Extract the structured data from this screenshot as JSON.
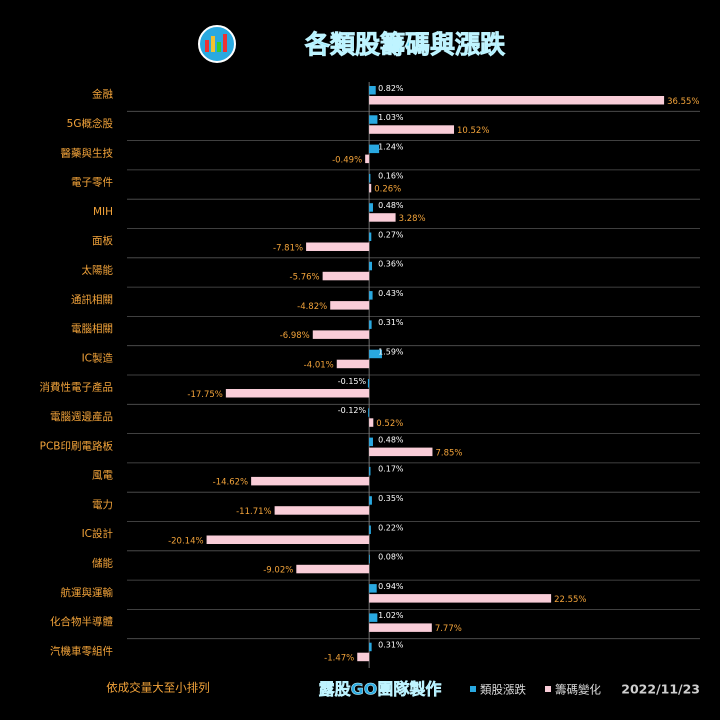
{
  "chart_data": {
    "type": "bar",
    "orientation": "horizontal",
    "title": "各類股籌碼與漲跌",
    "note": "依成交量大至小排列",
    "credit": "露股GO團隊製作",
    "date": "2022/11/23",
    "categories": [
      "金融",
      "5G概念股",
      "醫藥與生技",
      "電子零件",
      "MIH",
      "面板",
      "太陽能",
      "通訊相關",
      "電腦相關",
      "IC製造",
      "消費性電子產品",
      "電腦週邊產品",
      "PCB印刷電路板",
      "風電",
      "電力",
      "IC設計",
      "儲能",
      "航運與運輸",
      "化合物半導體",
      "汽機車零組件"
    ],
    "series": [
      {
        "name": "類股漲跌",
        "color": "#29a8e0",
        "values": [
          0.82,
          1.03,
          1.24,
          0.16,
          0.48,
          0.27,
          0.36,
          0.43,
          0.31,
          1.59,
          -0.15,
          -0.12,
          0.48,
          0.17,
          0.35,
          0.22,
          0.08,
          0.94,
          1.02,
          0.31
        ],
        "value_labels": [
          "0.82%",
          "1.03%",
          "1.24%",
          "0.16%",
          "0.48%",
          "0.27%",
          "0.36%",
          "0.43%",
          "0.31%",
          "1.59%",
          "-0.15%",
          "-0.12%",
          "0.48%",
          "0.17%",
          "0.35%",
          "0.22%",
          "0.08%",
          "0.94%",
          "1.02%",
          "0.31%"
        ]
      },
      {
        "name": "籌碼變化",
        "color": "#f9cdd8",
        "values": [
          36.55,
          10.52,
          -0.49,
          0.26,
          3.28,
          -7.81,
          -5.76,
          -4.82,
          -6.98,
          -4.01,
          -17.75,
          0.52,
          7.85,
          -14.62,
          -11.71,
          -20.14,
          -9.02,
          22.55,
          7.77,
          -1.47
        ],
        "value_labels": [
          "36.55%",
          "10.52%",
          "-0.49%",
          "0.26%",
          "3.28%",
          "-7.81%",
          "-5.76%",
          "-4.82%",
          "-6.98%",
          "-4.01%",
          "-17.75%",
          "0.52%",
          "7.85%",
          "-14.62%",
          "-11.71%",
          "-20.14%",
          "-9.02%",
          "22.55%",
          "7.77%",
          "-1.47%"
        ]
      }
    ],
    "xlim": [
      -30,
      41
    ]
  }
}
